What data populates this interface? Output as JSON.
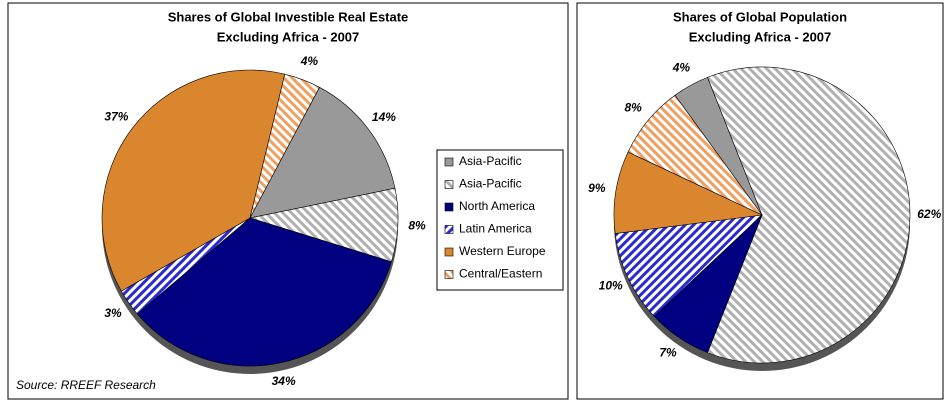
{
  "chart_data": [
    {
      "type": "pie",
      "title": [
        "Shares of Global Investible Real Estate",
        "Excluding Africa - 2007"
      ],
      "categories": [
        "Asia-Pacific",
        "Asia-Pacific",
        "North America",
        "Latin America",
        "Western Europe",
        "Central/Eastern"
      ],
      "colors": [
        "#999999",
        "#b0b0b0",
        "#000080",
        "#2a2ad0",
        "#d9862e",
        "#f0a060"
      ],
      "hatch": [
        false,
        true,
        false,
        true,
        false,
        true
      ],
      "values": [
        14,
        8,
        34,
        3,
        37,
        4
      ],
      "value_labels": [
        "14%",
        "8%",
        "34%",
        "3%",
        "37%",
        "4%"
      ],
      "source": "Source: RREEF Research"
    },
    {
      "type": "pie",
      "title": [
        "Shares of Global Population",
        "Excluding Africa - 2007"
      ],
      "values": [
        4,
        62,
        7,
        10,
        9,
        8
      ],
      "value_labels": [
        "4%",
        "62%",
        "7%",
        "10%",
        "9%",
        "8%"
      ]
    }
  ]
}
